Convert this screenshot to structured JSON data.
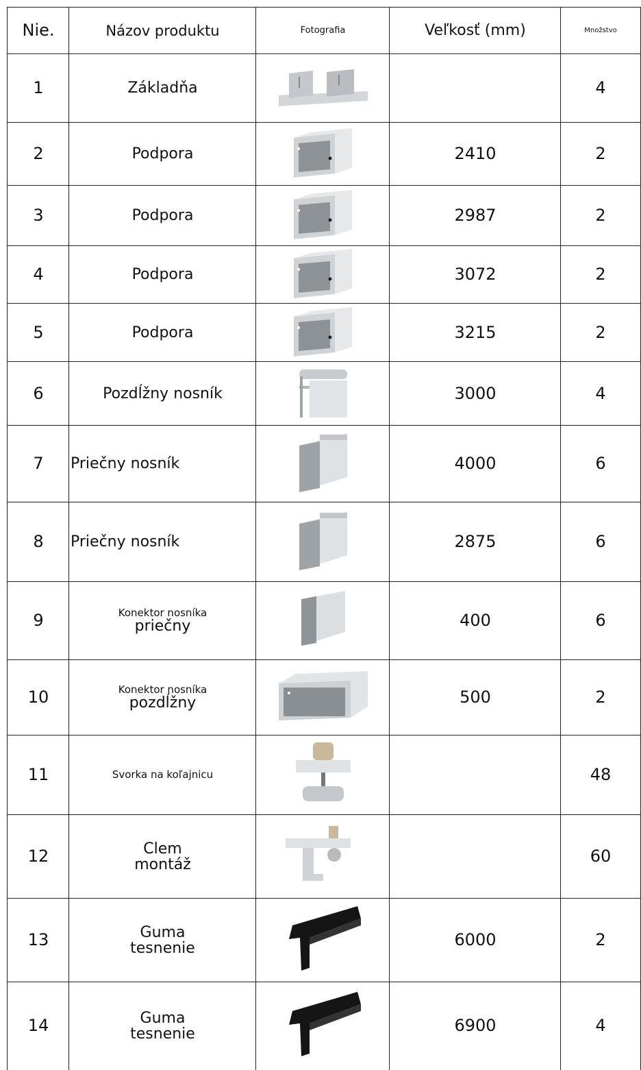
{
  "table": {
    "header": [
      "Nie.",
      "Názov produktu",
      "Fotografia",
      "Veľkosť (mm)",
      "Množstvo"
    ],
    "rows": [
      {
        "no": "1",
        "name": [
          "Základňa"
        ],
        "qty": "4"
      },
      {
        "no": "2",
        "name": [
          "Podpora"
        ],
        "size": "2410",
        "qty": "2"
      },
      {
        "no": "3",
        "name": [
          "Podpora"
        ],
        "size": "2987",
        "qty": "2"
      },
      {
        "no": "4",
        "name": [
          "Podpora"
        ],
        "size": "3072",
        "qty": "2"
      },
      {
        "no": "5",
        "name": [
          "Podpora"
        ],
        "size": "3215",
        "qty": "2"
      },
      {
        "no": "6",
        "name": [
          "Pozdĺžny nosník"
        ],
        "size": "3000",
        "qty": "4"
      },
      {
        "no": "7",
        "name": [
          "Priečny nosník"
        ],
        "size": "4000",
        "qty": "6"
      },
      {
        "no": "8",
        "name": [
          "Priečny nosník"
        ],
        "size": "2875",
        "qty": "6"
      },
      {
        "no": "9",
        "name": [
          "Konektor nosníka",
          "priečny"
        ],
        "size": "400",
        "qty": "6"
      },
      {
        "no": "10",
        "name": [
          "Konektor nosníka",
          "pozdĺžny"
        ],
        "size": "500",
        "qty": "2"
      },
      {
        "no": "11",
        "name": [
          "Svorka na koľajnicu"
        ],
        "qty": "48"
      },
      {
        "no": "12",
        "name": [
          "Clem",
          "montáž"
        ],
        "qty": "60"
      },
      {
        "no": "13",
        "name": [
          "Guma",
          "tesnenie"
        ],
        "size": "6000",
        "qty": "2"
      },
      {
        "no": "14",
        "name": [
          "Guma",
          "tesnenie"
        ],
        "size": "6900",
        "qty": "4"
      }
    ]
  }
}
